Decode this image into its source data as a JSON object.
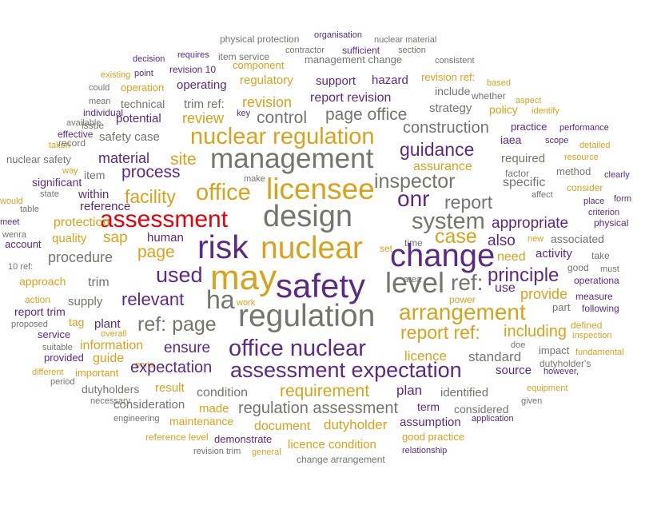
{
  "palette": {
    "purple": "#5b2a86",
    "gold": "#d9a21b",
    "gray": "#73766c",
    "red": "#e8000b"
  },
  "words": [
    {
      "text": "physical protection",
      "color": "gray"
    },
    {
      "text": "organisation",
      "color": "purple"
    },
    {
      "text": "nuclear material",
      "color": "gray"
    },
    {
      "text": "contractor",
      "color": "gray"
    },
    {
      "text": "sufficient",
      "color": "purple"
    },
    {
      "text": "section",
      "color": "gray"
    },
    {
      "text": "decision",
      "color": "purple"
    },
    {
      "text": "requires",
      "color": "purple"
    },
    {
      "text": "item service",
      "color": "gray"
    },
    {
      "text": "component",
      "color": "gold"
    },
    {
      "text": "management change",
      "color": "gray"
    },
    {
      "text": "consistent",
      "color": "gray"
    },
    {
      "text": "existing",
      "color": "gold"
    },
    {
      "text": "point",
      "color": "purple"
    },
    {
      "text": "revision 10",
      "color": "purple"
    },
    {
      "text": "regulatory",
      "color": "gold"
    },
    {
      "text": "support",
      "color": "purple"
    },
    {
      "text": "hazard",
      "color": "purple"
    },
    {
      "text": "revision ref:",
      "color": "gold"
    },
    {
      "text": "based",
      "color": "gold"
    },
    {
      "text": "could",
      "color": "gray"
    },
    {
      "text": "operation",
      "color": "gold"
    },
    {
      "text": "operating",
      "color": "purple"
    },
    {
      "text": "include",
      "color": "gray"
    },
    {
      "text": "whether",
      "color": "gray"
    },
    {
      "text": "mean",
      "color": "gray"
    },
    {
      "text": "technical",
      "color": "gray"
    },
    {
      "text": "trim ref:",
      "color": "gray"
    },
    {
      "text": "revision",
      "color": "gold"
    },
    {
      "text": "report revision",
      "color": "purple"
    },
    {
      "text": "aspect",
      "color": "gold"
    },
    {
      "text": "individual",
      "color": "purple"
    },
    {
      "text": "key",
      "color": "purple"
    },
    {
      "text": "strategy",
      "color": "gray"
    },
    {
      "text": "policy",
      "color": "gold"
    },
    {
      "text": "identify",
      "color": "gold"
    },
    {
      "text": "available",
      "color": "gray"
    },
    {
      "text": "potential",
      "color": "purple"
    },
    {
      "text": "review",
      "color": "gold"
    },
    {
      "text": "control",
      "color": "gray"
    },
    {
      "text": "page office",
      "color": "gray"
    },
    {
      "text": "practice",
      "color": "purple"
    },
    {
      "text": "performance",
      "color": "purple"
    },
    {
      "text": "issue",
      "color": "gray"
    },
    {
      "text": "effective",
      "color": "purple"
    },
    {
      "text": "nuclear regulation",
      "color": "gold"
    },
    {
      "text": "construction",
      "color": "gray"
    },
    {
      "text": "iaea",
      "color": "purple"
    },
    {
      "text": "scope",
      "color": "purple"
    },
    {
      "text": "taken",
      "color": "gold"
    },
    {
      "text": "record",
      "color": "gray"
    },
    {
      "text": "safety case",
      "color": "gray"
    },
    {
      "text": "detailed",
      "color": "gold"
    },
    {
      "text": "resource",
      "color": "gold"
    },
    {
      "text": "nuclear safety",
      "color": "gray"
    },
    {
      "text": "material",
      "color": "purple"
    },
    {
      "text": "site",
      "color": "gold"
    },
    {
      "text": "management",
      "color": "gray"
    },
    {
      "text": "guidance",
      "color": "purple"
    },
    {
      "text": "required",
      "color": "gray"
    },
    {
      "text": "way",
      "color": "gold"
    },
    {
      "text": "process",
      "color": "purple"
    },
    {
      "text": "assurance",
      "color": "gold"
    },
    {
      "text": "method",
      "color": "gray"
    },
    {
      "text": "significant",
      "color": "purple"
    },
    {
      "text": "item",
      "color": "gray"
    },
    {
      "text": "make",
      "color": "gray"
    },
    {
      "text": "inspector",
      "color": "gray"
    },
    {
      "text": "factor",
      "color": "gray"
    },
    {
      "text": "clearly",
      "color": "purple"
    },
    {
      "text": "licensee",
      "color": "gold"
    },
    {
      "text": "specific",
      "color": "gray"
    },
    {
      "text": "state",
      "color": "gray"
    },
    {
      "text": "within",
      "color": "purple"
    },
    {
      "text": "office",
      "color": "gold"
    },
    {
      "text": "consider",
      "color": "gold"
    },
    {
      "text": "would",
      "color": "gold"
    },
    {
      "text": "facility",
      "color": "gold"
    },
    {
      "text": "affect",
      "color": "gray"
    },
    {
      "text": "reference",
      "color": "purple"
    },
    {
      "text": "onr",
      "color": "purple"
    },
    {
      "text": "report",
      "color": "gray"
    },
    {
      "text": "place",
      "color": "purple"
    },
    {
      "text": "form",
      "color": "purple"
    },
    {
      "text": "table",
      "color": "gray"
    },
    {
      "text": "design",
      "color": "gray"
    },
    {
      "text": "criterion",
      "color": "purple"
    },
    {
      "text": "meet",
      "color": "purple"
    },
    {
      "text": "assessment",
      "color": "red"
    },
    {
      "text": "system",
      "color": "gray"
    },
    {
      "text": "appropriate",
      "color": "purple"
    },
    {
      "text": "physical",
      "color": "purple"
    },
    {
      "text": "protection",
      "color": "gold"
    },
    {
      "text": "wenra",
      "color": "gray"
    },
    {
      "text": "quality",
      "color": "gold"
    },
    {
      "text": "sap",
      "color": "gold"
    },
    {
      "text": "human",
      "color": "purple"
    },
    {
      "text": "case",
      "color": "gold"
    },
    {
      "text": "also",
      "color": "purple"
    },
    {
      "text": "time",
      "color": "gray"
    },
    {
      "text": "new",
      "color": "gold"
    },
    {
      "text": "associated",
      "color": "gray"
    },
    {
      "text": "account",
      "color": "purple"
    },
    {
      "text": "risk",
      "color": "purple"
    },
    {
      "text": "nuclear",
      "color": "gold"
    },
    {
      "text": "set",
      "color": "gold"
    },
    {
      "text": "change",
      "color": "purple"
    },
    {
      "text": "need",
      "color": "gold"
    },
    {
      "text": "take",
      "color": "gray"
    },
    {
      "text": "procedure",
      "color": "gray"
    },
    {
      "text": "page",
      "color": "gold"
    },
    {
      "text": "activity",
      "color": "purple"
    },
    {
      "text": "10 ref:",
      "color": "gray"
    },
    {
      "text": "good",
      "color": "gray"
    },
    {
      "text": "must",
      "color": "gray"
    },
    {
      "text": "trim",
      "color": "gray"
    },
    {
      "text": "used",
      "color": "purple"
    },
    {
      "text": "may",
      "color": "gold"
    },
    {
      "text": "safety",
      "color": "purple"
    },
    {
      "text": "level",
      "color": "gray"
    },
    {
      "text": "ref:",
      "color": "gray"
    },
    {
      "text": "principle",
      "color": "purple"
    },
    {
      "text": "operationa",
      "color": "purple"
    },
    {
      "text": "approach",
      "color": "gold"
    },
    {
      "text": "area",
      "color": "gray"
    },
    {
      "text": "use",
      "color": "purple"
    },
    {
      "text": "measure",
      "color": "purple"
    },
    {
      "text": "supply",
      "color": "gray"
    },
    {
      "text": "provide",
      "color": "gold"
    },
    {
      "text": "action",
      "color": "gold"
    },
    {
      "text": "relevant",
      "color": "purple"
    },
    {
      "text": "ha",
      "color": "gray"
    },
    {
      "text": "work",
      "color": "gold"
    },
    {
      "text": "power",
      "color": "gold"
    },
    {
      "text": "part",
      "color": "gray"
    },
    {
      "text": "following",
      "color": "purple"
    },
    {
      "text": "report trim",
      "color": "purple"
    },
    {
      "text": "tag",
      "color": "gold"
    },
    {
      "text": "plant",
      "color": "purple"
    },
    {
      "text": "ref: page",
      "color": "gray"
    },
    {
      "text": "regulation",
      "color": "gray"
    },
    {
      "text": "arrangement",
      "color": "gold"
    },
    {
      "text": "defined",
      "color": "gold"
    },
    {
      "text": "proposed",
      "color": "gray"
    },
    {
      "text": "service",
      "color": "purple"
    },
    {
      "text": "overall",
      "color": "gold"
    },
    {
      "text": "report ref:",
      "color": "gold"
    },
    {
      "text": "including",
      "color": "gold"
    },
    {
      "text": "inspection",
      "color": "gold"
    },
    {
      "text": "suitable",
      "color": "gray"
    },
    {
      "text": "information",
      "color": "gold"
    },
    {
      "text": "ensure",
      "color": "purple"
    },
    {
      "text": "office nuclear",
      "color": "purple"
    },
    {
      "text": "doe",
      "color": "gray"
    },
    {
      "text": "impact",
      "color": "gray"
    },
    {
      "text": "fundamental",
      "color": "gold"
    },
    {
      "text": "provided",
      "color": "purple"
    },
    {
      "text": "guide",
      "color": "gold"
    },
    {
      "text": "licence",
      "color": "gold"
    },
    {
      "text": "standard",
      "color": "gray"
    },
    {
      "text": "onr's",
      "color": "gold"
    },
    {
      "text": "dutyholder's",
      "color": "gray"
    },
    {
      "text": "different",
      "color": "gold"
    },
    {
      "text": "important",
      "color": "gold"
    },
    {
      "text": "expectation",
      "color": "purple"
    },
    {
      "text": "source",
      "color": "purple"
    },
    {
      "text": "however,",
      "color": "purple"
    },
    {
      "text": "assessment expectation",
      "color": "purple"
    },
    {
      "text": "period",
      "color": "gray"
    },
    {
      "text": "requirement",
      "color": "gold"
    },
    {
      "text": "plan",
      "color": "purple"
    },
    {
      "text": "equipment",
      "color": "gold"
    },
    {
      "text": "dutyholders",
      "color": "gray"
    },
    {
      "text": "result",
      "color": "gold"
    },
    {
      "text": "condition",
      "color": "gray"
    },
    {
      "text": "identified",
      "color": "gray"
    },
    {
      "text": "necessary",
      "color": "gray"
    },
    {
      "text": "given",
      "color": "gray"
    },
    {
      "text": "consideration",
      "color": "gray"
    },
    {
      "text": "made",
      "color": "gold"
    },
    {
      "text": "regulation assessment",
      "color": "gray"
    },
    {
      "text": "term",
      "color": "purple"
    },
    {
      "text": "considered",
      "color": "gray"
    },
    {
      "text": "engineering",
      "color": "gray"
    },
    {
      "text": "maintenance",
      "color": "gold"
    },
    {
      "text": "document",
      "color": "gold"
    },
    {
      "text": "dutyholder",
      "color": "gold"
    },
    {
      "text": "assumption",
      "color": "purple"
    },
    {
      "text": "application",
      "color": "purple"
    },
    {
      "text": "reference level",
      "color": "gold"
    },
    {
      "text": "demonstrate",
      "color": "purple"
    },
    {
      "text": "good practice",
      "color": "gold"
    },
    {
      "text": "licence condition",
      "color": "gold"
    },
    {
      "text": "revision trim",
      "color": "gray"
    },
    {
      "text": "general",
      "color": "gold"
    },
    {
      "text": "relationship",
      "color": "purple"
    },
    {
      "text": "change arrangement",
      "color": "gray"
    }
  ]
}
